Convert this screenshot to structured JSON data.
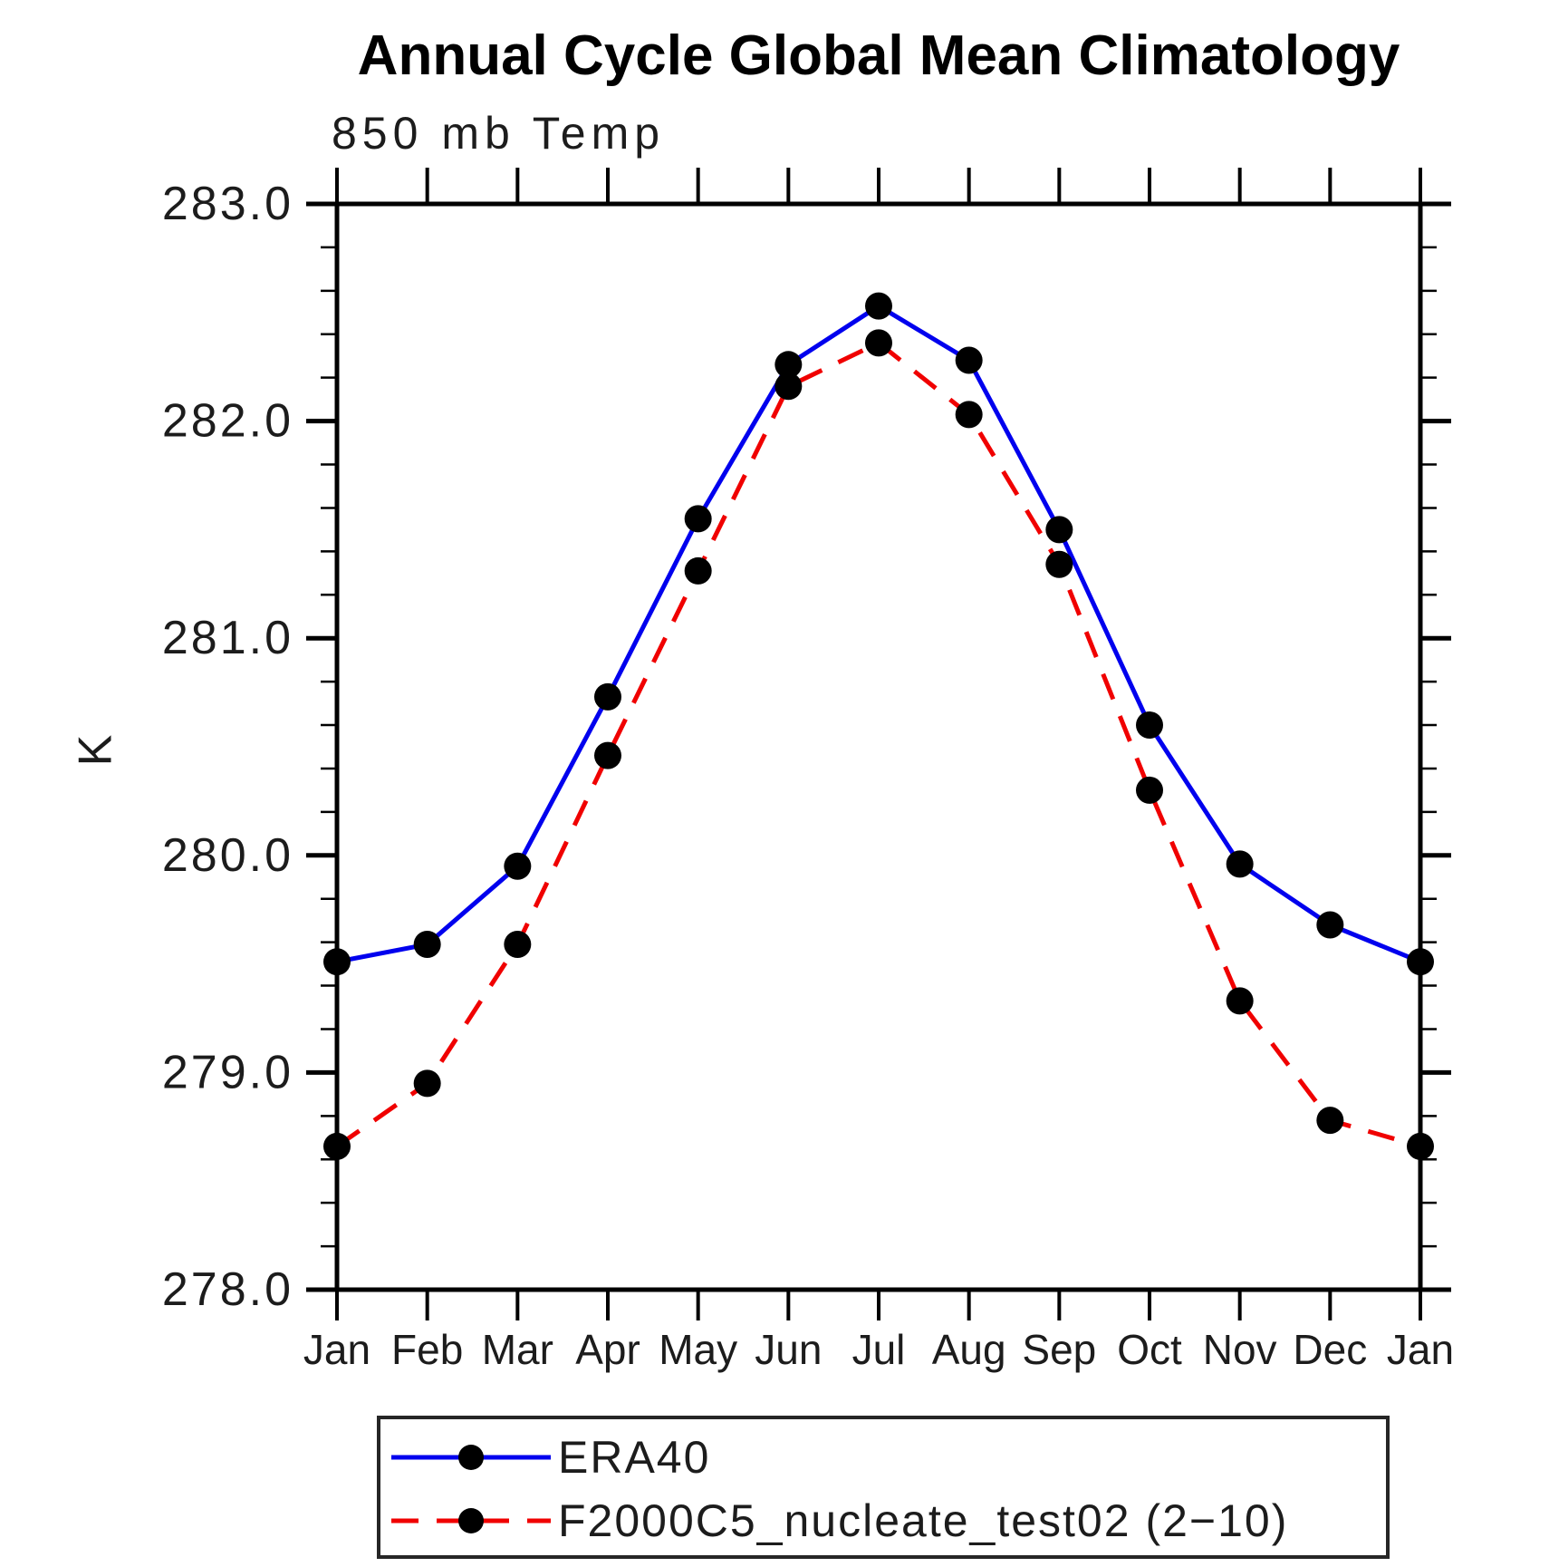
{
  "chart_data": {
    "type": "line",
    "title": "Annual Cycle Global Mean Climatology",
    "subtitle": "850 mb Temp",
    "ylabel": "K",
    "xlabel": "",
    "categories": [
      "Jan",
      "Feb",
      "Mar",
      "Apr",
      "May",
      "Jun",
      "Jul",
      "Aug",
      "Sep",
      "Oct",
      "Nov",
      "Dec",
      "Jan"
    ],
    "ylim": [
      278.0,
      283.0
    ],
    "yticks": [
      278,
      279,
      280,
      281,
      282,
      283
    ],
    "ytick_labels": [
      "278.0",
      "279.0",
      "280.0",
      "281.0",
      "282.0",
      "283.0"
    ],
    "y_minor_step": 0.2,
    "grid": false,
    "legend_position": "bottom",
    "axis_color": "#000000",
    "marker_color": "#000000",
    "series": [
      {
        "name": "ERA40",
        "color": "#0000ee",
        "style": "solid",
        "marker": "circle",
        "values": [
          279.51,
          279.59,
          279.95,
          280.73,
          281.55,
          282.26,
          282.53,
          282.28,
          281.5,
          280.6,
          279.96,
          279.68,
          279.51
        ]
      },
      {
        "name": "F2000C5_nucleate_test02 (2−10)",
        "color": "#f00000",
        "style": "dashed",
        "marker": "circle",
        "values": [
          278.66,
          278.95,
          279.59,
          280.46,
          281.31,
          282.16,
          282.36,
          282.03,
          281.34,
          280.3,
          279.33,
          278.78,
          278.66
        ]
      }
    ]
  }
}
